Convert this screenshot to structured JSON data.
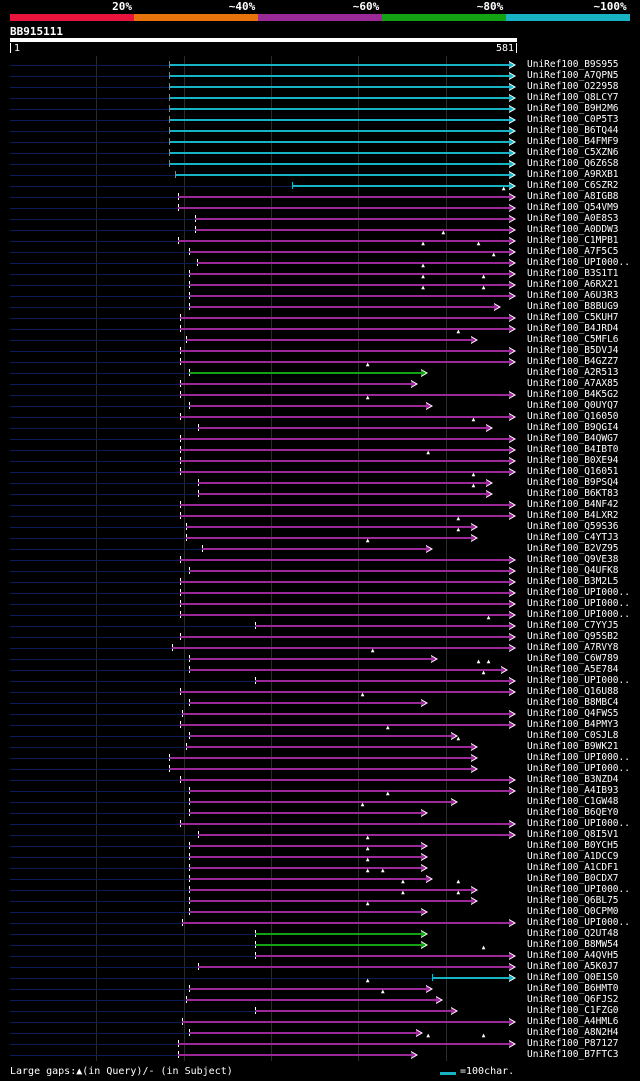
{
  "legend": {
    "segments": [
      {
        "label": "20%",
        "color": "#e8143c"
      },
      {
        "label": "~40%",
        "color": "#e8720c"
      },
      {
        "label": "~60%",
        "color": "#9b2a98"
      },
      {
        "label": "~80%",
        "color": "#13a213"
      },
      {
        "label": "~100%",
        "color": "#17b3c4"
      }
    ]
  },
  "query": {
    "id": "BB915111",
    "start": "1",
    "end": "581"
  },
  "colors": {
    "cyan": "#17b3c4",
    "purple": "#9b2a98",
    "green": "#13a213"
  },
  "hits": [
    {
      "name": "UniRef100_B9S955",
      "color": "cyan",
      "start": 0.315,
      "end": 1.0,
      "tick": false
    },
    {
      "name": "UniRef100_A7QPN5",
      "color": "cyan",
      "start": 0.315,
      "end": 1.0,
      "tick": false
    },
    {
      "name": "UniRef100_O22958",
      "color": "cyan",
      "start": 0.315,
      "end": 1.0,
      "tick": false
    },
    {
      "name": "UniRef100_Q8LCY7",
      "color": "cyan",
      "start": 0.315,
      "end": 1.0,
      "tick": false
    },
    {
      "name": "UniRef100_B9H2M6",
      "color": "cyan",
      "start": 0.315,
      "end": 1.0,
      "tick": false
    },
    {
      "name": "UniRef100_C0P5T3",
      "color": "cyan",
      "start": 0.315,
      "end": 1.0,
      "tick": false
    },
    {
      "name": "UniRef100_B6TQ44",
      "color": "cyan",
      "start": 0.315,
      "end": 1.0,
      "tick": false
    },
    {
      "name": "UniRef100_B4FMF9",
      "color": "cyan",
      "start": 0.315,
      "end": 1.0,
      "tick": false
    },
    {
      "name": "UniRef100_C5XZN6",
      "color": "cyan",
      "start": 0.315,
      "end": 1.0,
      "tick": false
    },
    {
      "name": "UniRef100_Q6Z6S8",
      "color": "cyan",
      "start": 0.315,
      "end": 1.0,
      "tick": false
    },
    {
      "name": "UniRef100_A9RXB1",
      "color": "cyan",
      "start": 0.327,
      "end": 1.0,
      "tick": false
    },
    {
      "name": "UniRef100_C6SZR2",
      "color": "cyan",
      "start": 0.559,
      "end": 1.0,
      "tick": false
    },
    {
      "name": "UniRef100_A8IGB8",
      "color": "purple",
      "start": 0.333,
      "end": 1.0,
      "tick": true,
      "marks": [
        0.98
      ]
    },
    {
      "name": "UniRef100_Q54VM9",
      "color": "purple",
      "start": 0.333,
      "end": 1.0,
      "tick": true,
      "marks": []
    },
    {
      "name": "UniRef100_A0E8S3",
      "color": "purple",
      "start": 0.367,
      "end": 1.0,
      "tick": true,
      "marks": []
    },
    {
      "name": "UniRef100_A0DDW3",
      "color": "purple",
      "start": 0.367,
      "end": 1.0,
      "tick": true,
      "marks": []
    },
    {
      "name": "UniRef100_C1MPB1",
      "color": "purple",
      "start": 0.333,
      "end": 1.0,
      "tick": true,
      "marks": [
        0.86
      ]
    },
    {
      "name": "UniRef100_A7F5C5",
      "color": "purple",
      "start": 0.356,
      "end": 1.0,
      "tick": true,
      "marks": [
        0.82,
        0.93
      ]
    },
    {
      "name": "UniRef100_UPI000..",
      "color": "purple",
      "start": 0.372,
      "end": 1.0,
      "tick": true,
      "marks": [
        0.96
      ]
    },
    {
      "name": "UniRef100_B3S1T1",
      "color": "purple",
      "start": 0.356,
      "end": 1.0,
      "tick": true,
      "marks": [
        0.82
      ]
    },
    {
      "name": "UniRef100_A6RX21",
      "color": "purple",
      "start": 0.356,
      "end": 1.0,
      "tick": true,
      "marks": [
        0.82,
        0.94
      ]
    },
    {
      "name": "UniRef100_A6U3R3",
      "color": "purple",
      "start": 0.356,
      "end": 1.0,
      "tick": true,
      "marks": [
        0.82,
        0.94
      ]
    },
    {
      "name": "UniRef100_B8BUG9",
      "color": "purple",
      "start": 0.356,
      "end": 0.97,
      "tick": true,
      "marks": []
    },
    {
      "name": "UniRef100_C5KUH7",
      "color": "purple",
      "start": 0.337,
      "end": 1.0,
      "tick": true,
      "marks": []
    },
    {
      "name": "UniRef100_B4JRD4",
      "color": "purple",
      "start": 0.337,
      "end": 1.0,
      "tick": true,
      "marks": []
    },
    {
      "name": "UniRef100_C5MFL6",
      "color": "purple",
      "start": 0.349,
      "end": 0.925,
      "tick": true,
      "marks": [
        0.89
      ]
    },
    {
      "name": "UniRef100_B5DVJ4",
      "color": "purple",
      "start": 0.337,
      "end": 1.0,
      "tick": true,
      "marks": []
    },
    {
      "name": "UniRef100_B4GZZ7",
      "color": "purple",
      "start": 0.337,
      "end": 1.0,
      "tick": true,
      "marks": []
    },
    {
      "name": "UniRef100_A2R513",
      "color": "green",
      "start": 0.356,
      "end": 0.825,
      "tick": true,
      "marks": [
        0.71
      ]
    },
    {
      "name": "UniRef100_A7AX85",
      "color": "purple",
      "start": 0.337,
      "end": 0.805,
      "tick": true,
      "marks": []
    },
    {
      "name": "UniRef100_B4K5G2",
      "color": "purple",
      "start": 0.337,
      "end": 1.0,
      "tick": true,
      "marks": []
    },
    {
      "name": "UniRef100_Q0UYQ7",
      "color": "purple",
      "start": 0.356,
      "end": 0.835,
      "tick": true,
      "marks": [
        0.71
      ]
    },
    {
      "name": "UniRef100_Q16050",
      "color": "purple",
      "start": 0.337,
      "end": 1.0,
      "tick": true,
      "marks": []
    },
    {
      "name": "UniRef100_B9QGI4",
      "color": "purple",
      "start": 0.374,
      "end": 0.955,
      "tick": true,
      "marks": [
        0.92
      ]
    },
    {
      "name": "UniRef100_B4QWG7",
      "color": "purple",
      "start": 0.337,
      "end": 1.0,
      "tick": true,
      "marks": []
    },
    {
      "name": "UniRef100_B4IBT0",
      "color": "purple",
      "start": 0.337,
      "end": 1.0,
      "tick": true,
      "marks": []
    },
    {
      "name": "UniRef100_B0XE94",
      "color": "purple",
      "start": 0.337,
      "end": 1.0,
      "tick": true,
      "marks": [
        0.83
      ]
    },
    {
      "name": "UniRef100_Q16051",
      "color": "purple",
      "start": 0.337,
      "end": 1.0,
      "tick": true,
      "marks": []
    },
    {
      "name": "UniRef100_B9PSQ4",
      "color": "purple",
      "start": 0.374,
      "end": 0.955,
      "tick": true,
      "marks": [
        0.92
      ]
    },
    {
      "name": "UniRef100_B6KT83",
      "color": "purple",
      "start": 0.374,
      "end": 0.955,
      "tick": true,
      "marks": [
        0.92
      ]
    },
    {
      "name": "UniRef100_B4NF42",
      "color": "purple",
      "start": 0.337,
      "end": 1.0,
      "tick": true,
      "marks": []
    },
    {
      "name": "UniRef100_B4LXR2",
      "color": "purple",
      "start": 0.337,
      "end": 1.0,
      "tick": true,
      "marks": []
    },
    {
      "name": "UniRef100_Q59S36",
      "color": "purple",
      "start": 0.349,
      "end": 0.925,
      "tick": true,
      "marks": [
        0.89
      ]
    },
    {
      "name": "UniRef100_C4YTJ3",
      "color": "purple",
      "start": 0.349,
      "end": 0.925,
      "tick": true,
      "marks": [
        0.89
      ]
    },
    {
      "name": "UniRef100_B2VZ95",
      "color": "purple",
      "start": 0.38,
      "end": 0.835,
      "tick": true,
      "marks": [
        0.71
      ]
    },
    {
      "name": "UniRef100_Q9VE38",
      "color": "purple",
      "start": 0.337,
      "end": 1.0,
      "tick": true,
      "marks": []
    },
    {
      "name": "UniRef100_Q4UFK8",
      "color": "purple",
      "start": 0.356,
      "end": 1.0,
      "tick": true,
      "marks": []
    },
    {
      "name": "UniRef100_B3M2L5",
      "color": "purple",
      "start": 0.337,
      "end": 1.0,
      "tick": true,
      "marks": []
    },
    {
      "name": "UniRef100_UPI000..",
      "color": "purple",
      "start": 0.337,
      "end": 1.0,
      "tick": true,
      "marks": []
    },
    {
      "name": "UniRef100_UPI000..",
      "color": "purple",
      "start": 0.337,
      "end": 1.0,
      "tick": true,
      "marks": []
    },
    {
      "name": "UniRef100_UPI000..",
      "color": "purple",
      "start": 0.337,
      "end": 1.0,
      "tick": true,
      "marks": []
    },
    {
      "name": "UniRef100_C7YYJ5",
      "color": "purple",
      "start": 0.487,
      "end": 1.0,
      "tick": true,
      "marks": [
        0.95
      ]
    },
    {
      "name": "UniRef100_Q95SB2",
      "color": "purple",
      "start": 0.337,
      "end": 1.0,
      "tick": true,
      "marks": []
    },
    {
      "name": "UniRef100_A7RVY8",
      "color": "purple",
      "start": 0.322,
      "end": 1.0,
      "tick": true,
      "marks": []
    },
    {
      "name": "UniRef100_C6W789",
      "color": "purple",
      "start": 0.356,
      "end": 0.845,
      "tick": true,
      "marks": [
        0.72
      ]
    },
    {
      "name": "UniRef100_A5E784",
      "color": "purple",
      "start": 0.356,
      "end": 0.985,
      "tick": true,
      "marks": [
        0.93,
        0.95
      ]
    },
    {
      "name": "UniRef100_UPI000..",
      "color": "purple",
      "start": 0.487,
      "end": 1.0,
      "tick": true,
      "marks": [
        0.94
      ]
    },
    {
      "name": "UniRef100_Q16U88",
      "color": "purple",
      "start": 0.337,
      "end": 1.0,
      "tick": true,
      "marks": []
    },
    {
      "name": "UniRef100_B8MBC4",
      "color": "purple",
      "start": 0.356,
      "end": 0.825,
      "tick": true,
      "marks": [
        0.7
      ]
    },
    {
      "name": "UniRef100_Q4FWS5",
      "color": "purple",
      "start": 0.342,
      "end": 1.0,
      "tick": true,
      "marks": []
    },
    {
      "name": "UniRef100_B4PMY3",
      "color": "purple",
      "start": 0.337,
      "end": 1.0,
      "tick": true,
      "marks": []
    },
    {
      "name": "UniRef100_C0SJL8",
      "color": "purple",
      "start": 0.356,
      "end": 0.885,
      "tick": true,
      "marks": [
        0.75
      ]
    },
    {
      "name": "UniRef100_B9WK21",
      "color": "purple",
      "start": 0.349,
      "end": 0.925,
      "tick": true,
      "marks": [
        0.89
      ]
    },
    {
      "name": "UniRef100_UPI000..",
      "color": "purple",
      "start": 0.315,
      "end": 0.925,
      "tick": true,
      "marks": []
    },
    {
      "name": "UniRef100_UPI000..",
      "color": "purple",
      "start": 0.315,
      "end": 0.925,
      "tick": true,
      "marks": []
    },
    {
      "name": "UniRef100_B3NZD4",
      "color": "purple",
      "start": 0.337,
      "end": 1.0,
      "tick": true,
      "marks": []
    },
    {
      "name": "UniRef100_A4IB93",
      "color": "purple",
      "start": 0.356,
      "end": 1.0,
      "tick": true,
      "marks": []
    },
    {
      "name": "UniRef100_C1GW48",
      "color": "purple",
      "start": 0.356,
      "end": 0.885,
      "tick": true,
      "marks": [
        0.75
      ]
    },
    {
      "name": "UniRef100_B6QEY0",
      "color": "purple",
      "start": 0.356,
      "end": 0.825,
      "tick": true,
      "marks": [
        0.7
      ]
    },
    {
      "name": "UniRef100_UPI000..",
      "color": "purple",
      "start": 0.337,
      "end": 1.0,
      "tick": true,
      "marks": []
    },
    {
      "name": "UniRef100_Q8I5V1",
      "color": "purple",
      "start": 0.374,
      "end": 1.0,
      "tick": true,
      "marks": []
    },
    {
      "name": "UniRef100_B0YCH5",
      "color": "purple",
      "start": 0.356,
      "end": 0.825,
      "tick": true,
      "marks": [
        0.71
      ]
    },
    {
      "name": "UniRef100_A1DCC9",
      "color": "purple",
      "start": 0.356,
      "end": 0.825,
      "tick": true,
      "marks": [
        0.71
      ]
    },
    {
      "name": "UniRef100_A1CDF1",
      "color": "purple",
      "start": 0.356,
      "end": 0.825,
      "tick": true,
      "marks": [
        0.71
      ]
    },
    {
      "name": "UniRef100_B0CDX7",
      "color": "purple",
      "start": 0.356,
      "end": 0.835,
      "tick": true,
      "marks": [
        0.71,
        0.74
      ]
    },
    {
      "name": "UniRef100_UPI000..",
      "color": "purple",
      "start": 0.356,
      "end": 0.925,
      "tick": true,
      "marks": [
        0.78,
        0.89
      ]
    },
    {
      "name": "UniRef100_Q6BL75",
      "color": "purple",
      "start": 0.356,
      "end": 0.925,
      "tick": true,
      "marks": [
        0.78,
        0.89
      ]
    },
    {
      "name": "UniRef100_Q0CPM0",
      "color": "purple",
      "start": 0.356,
      "end": 0.825,
      "tick": true,
      "marks": [
        0.71
      ]
    },
    {
      "name": "UniRef100_UPI000..",
      "color": "purple",
      "start": 0.342,
      "end": 1.0,
      "tick": true,
      "marks": []
    },
    {
      "name": "UniRef100_Q2UT48",
      "color": "green",
      "start": 0.487,
      "end": 0.825,
      "tick": true,
      "marks": []
    },
    {
      "name": "UniRef100_B8MW54",
      "color": "green",
      "start": 0.487,
      "end": 0.825,
      "tick": true,
      "marks": []
    },
    {
      "name": "UniRef100_A4QVH5",
      "color": "purple",
      "start": 0.487,
      "end": 1.0,
      "tick": true,
      "marks": [
        0.94
      ]
    },
    {
      "name": "UniRef100_A5K0J7",
      "color": "purple",
      "start": 0.374,
      "end": 1.0,
      "tick": true,
      "marks": []
    },
    {
      "name": "UniRef100_Q0E1S0",
      "color": "cyan",
      "start": 0.837,
      "end": 1.0,
      "tick": false,
      "marks": []
    },
    {
      "name": "UniRef100_B6HMT0",
      "color": "purple",
      "start": 0.356,
      "end": 0.835,
      "tick": true,
      "marks": [
        0.71
      ]
    },
    {
      "name": "UniRef100_Q6FJS2",
      "color": "purple",
      "start": 0.349,
      "end": 0.855,
      "tick": true,
      "marks": [
        0.74
      ]
    },
    {
      "name": "UniRef100_C1FZG0",
      "color": "purple",
      "start": 0.487,
      "end": 0.885,
      "tick": true,
      "marks": []
    },
    {
      "name": "UniRef100_A4HML6",
      "color": "purple",
      "start": 0.342,
      "end": 1.0,
      "tick": true,
      "marks": []
    },
    {
      "name": "UniRef100_A8N2H4",
      "color": "purple",
      "start": 0.356,
      "end": 0.815,
      "tick": true,
      "marks": []
    },
    {
      "name": "UniRef100_P87127",
      "color": "purple",
      "start": 0.333,
      "end": 1.0,
      "tick": true,
      "marks": [
        0.83,
        0.94
      ]
    },
    {
      "name": "UniRef100_B7FTC3",
      "color": "purple",
      "start": 0.333,
      "end": 0.805,
      "tick": true,
      "marks": []
    }
  ],
  "footer": {
    "gaps_text": "Large gaps:▲(in Query)/- (in Subject)",
    "scale_text": "=100char."
  }
}
